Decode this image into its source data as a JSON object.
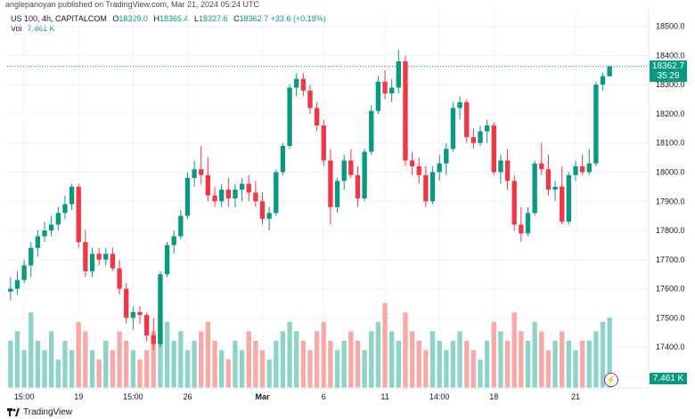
{
  "header": {
    "publish_line": "anglepanoyan published on TradingView.com, Mar 21, 2024 05:24 UTC"
  },
  "legend": {
    "symbol": "US 100, 4h, CAPITALCOM",
    "open_label": "O",
    "open": "18329.0",
    "high_label": "H",
    "high": "18365.4",
    "low_label": "L",
    "low": "18327.6",
    "close_label": "C",
    "close": "18362.7",
    "change": "+33.6 (+0.18%)",
    "vol_label": "Vol",
    "vol_value": "7.461 K"
  },
  "price_axis": {
    "ticks": [
      "18500.0",
      "18400.0",
      "18300.0",
      "18200.0",
      "18100.0",
      "18000.0",
      "17900.0",
      "17800.0",
      "17700.0",
      "17600.0",
      "17500.0",
      "17400.0",
      "17300.0"
    ],
    "last_price": "18362.7",
    "countdown": "35:29",
    "volume_tag": "7.461 K"
  },
  "time_axis": {
    "labels": [
      "15:00",
      "19",
      "15:00",
      "26",
      "Mar",
      "6",
      "11",
      "14:00",
      "18",
      "21"
    ]
  },
  "footer": {
    "brand": "TradingView"
  },
  "colors": {
    "up": "#089981",
    "down": "#f23645",
    "up_volume": "#8dd3c8",
    "down_volume": "#f7a9a7"
  },
  "chart_data": {
    "type": "candlestick",
    "ylim": [
      17260,
      18560
    ],
    "volume_max": 10,
    "candles": [
      {
        "o": 17590,
        "h": 17640,
        "l": 17560,
        "c": 17600
      },
      {
        "o": 17600,
        "h": 17660,
        "l": 17580,
        "c": 17630
      },
      {
        "o": 17630,
        "h": 17700,
        "l": 17620,
        "c": 17680
      },
      {
        "o": 17680,
        "h": 17760,
        "l": 17640,
        "c": 17740
      },
      {
        "o": 17740,
        "h": 17800,
        "l": 17710,
        "c": 17780
      },
      {
        "o": 17780,
        "h": 17830,
        "l": 17760,
        "c": 17800
      },
      {
        "o": 17800,
        "h": 17850,
        "l": 17780,
        "c": 17820
      },
      {
        "o": 17820,
        "h": 17880,
        "l": 17800,
        "c": 17860
      },
      {
        "o": 17860,
        "h": 17920,
        "l": 17840,
        "c": 17890
      },
      {
        "o": 17890,
        "h": 17960,
        "l": 17870,
        "c": 17950
      },
      {
        "o": 17950,
        "h": 17960,
        "l": 17740,
        "c": 17760
      },
      {
        "o": 17760,
        "h": 17800,
        "l": 17640,
        "c": 17660
      },
      {
        "o": 17660,
        "h": 17740,
        "l": 17640,
        "c": 17720
      },
      {
        "o": 17720,
        "h": 17740,
        "l": 17680,
        "c": 17700
      },
      {
        "o": 17700,
        "h": 17740,
        "l": 17680,
        "c": 17720
      },
      {
        "o": 17720,
        "h": 17740,
        "l": 17660,
        "c": 17670
      },
      {
        "o": 17670,
        "h": 17700,
        "l": 17580,
        "c": 17600
      },
      {
        "o": 17600,
        "h": 17620,
        "l": 17480,
        "c": 17500
      },
      {
        "o": 17500,
        "h": 17540,
        "l": 17460,
        "c": 17520
      },
      {
        "o": 17520,
        "h": 17540,
        "l": 17480,
        "c": 17510
      },
      {
        "o": 17510,
        "h": 17520,
        "l": 17420,
        "c": 17440
      },
      {
        "o": 17440,
        "h": 17500,
        "l": 17390,
        "c": 17410
      },
      {
        "o": 17410,
        "h": 17660,
        "l": 17400,
        "c": 17650
      },
      {
        "o": 17650,
        "h": 17760,
        "l": 17640,
        "c": 17750
      },
      {
        "o": 17750,
        "h": 17800,
        "l": 17720,
        "c": 17780
      },
      {
        "o": 17780,
        "h": 17870,
        "l": 17770,
        "c": 17850
      },
      {
        "o": 17850,
        "h": 18000,
        "l": 17840,
        "c": 17980
      },
      {
        "o": 17980,
        "h": 18040,
        "l": 17950,
        "c": 18010
      },
      {
        "o": 18010,
        "h": 18090,
        "l": 17960,
        "c": 17990
      },
      {
        "o": 17990,
        "h": 18050,
        "l": 17900,
        "c": 17920
      },
      {
        "o": 17920,
        "h": 17950,
        "l": 17880,
        "c": 17900
      },
      {
        "o": 17900,
        "h": 17960,
        "l": 17880,
        "c": 17940
      },
      {
        "o": 17940,
        "h": 17980,
        "l": 17880,
        "c": 17910
      },
      {
        "o": 17910,
        "h": 17960,
        "l": 17880,
        "c": 17940
      },
      {
        "o": 17940,
        "h": 17980,
        "l": 17900,
        "c": 17960
      },
      {
        "o": 17960,
        "h": 17990,
        "l": 17900,
        "c": 17930
      },
      {
        "o": 17930,
        "h": 17970,
        "l": 17880,
        "c": 17900
      },
      {
        "o": 17900,
        "h": 17930,
        "l": 17820,
        "c": 17840
      },
      {
        "o": 17840,
        "h": 17880,
        "l": 17800,
        "c": 17860
      },
      {
        "o": 17860,
        "h": 18010,
        "l": 17850,
        "c": 18000
      },
      {
        "o": 18000,
        "h": 18100,
        "l": 17990,
        "c": 18090
      },
      {
        "o": 18090,
        "h": 18300,
        "l": 18080,
        "c": 18290
      },
      {
        "o": 18290,
        "h": 18340,
        "l": 18260,
        "c": 18320
      },
      {
        "o": 18320,
        "h": 18340,
        "l": 18260,
        "c": 18280
      },
      {
        "o": 18280,
        "h": 18300,
        "l": 18200,
        "c": 18220
      },
      {
        "o": 18220,
        "h": 18240,
        "l": 18140,
        "c": 18160
      },
      {
        "o": 18160,
        "h": 18180,
        "l": 18020,
        "c": 18040
      },
      {
        "o": 18040,
        "h": 18080,
        "l": 17820,
        "c": 17880
      },
      {
        "o": 17880,
        "h": 17980,
        "l": 17860,
        "c": 17970
      },
      {
        "o": 17970,
        "h": 18060,
        "l": 17940,
        "c": 18040
      },
      {
        "o": 18040,
        "h": 18080,
        "l": 17980,
        "c": 17990
      },
      {
        "o": 17990,
        "h": 18020,
        "l": 17880,
        "c": 17910
      },
      {
        "o": 17910,
        "h": 18080,
        "l": 17900,
        "c": 18070
      },
      {
        "o": 18070,
        "h": 18230,
        "l": 18060,
        "c": 18210
      },
      {
        "o": 18210,
        "h": 18330,
        "l": 18200,
        "c": 18310
      },
      {
        "o": 18310,
        "h": 18350,
        "l": 18250,
        "c": 18270
      },
      {
        "o": 18270,
        "h": 18320,
        "l": 18240,
        "c": 18290
      },
      {
        "o": 18290,
        "h": 18420,
        "l": 18270,
        "c": 18380
      },
      {
        "o": 18380,
        "h": 18400,
        "l": 18020,
        "c": 18040
      },
      {
        "o": 18040,
        "h": 18070,
        "l": 17990,
        "c": 18020
      },
      {
        "o": 18020,
        "h": 18050,
        "l": 17960,
        "c": 17990
      },
      {
        "o": 17990,
        "h": 18020,
        "l": 17880,
        "c": 17900
      },
      {
        "o": 17900,
        "h": 18020,
        "l": 17890,
        "c": 18000
      },
      {
        "o": 18000,
        "h": 18060,
        "l": 17970,
        "c": 18030
      },
      {
        "o": 18030,
        "h": 18100,
        "l": 17990,
        "c": 18080
      },
      {
        "o": 18080,
        "h": 18240,
        "l": 18070,
        "c": 18220
      },
      {
        "o": 18220,
        "h": 18260,
        "l": 18180,
        "c": 18240
      },
      {
        "o": 18240,
        "h": 18250,
        "l": 18100,
        "c": 18120
      },
      {
        "o": 18120,
        "h": 18150,
        "l": 18080,
        "c": 18100
      },
      {
        "o": 18100,
        "h": 18160,
        "l": 18090,
        "c": 18140
      },
      {
        "o": 18140,
        "h": 18180,
        "l": 18100,
        "c": 18160
      },
      {
        "o": 18160,
        "h": 18170,
        "l": 17990,
        "c": 18000
      },
      {
        "o": 18000,
        "h": 18060,
        "l": 17960,
        "c": 18040
      },
      {
        "o": 18040,
        "h": 18080,
        "l": 17940,
        "c": 17970
      },
      {
        "o": 17970,
        "h": 17990,
        "l": 17800,
        "c": 17820
      },
      {
        "o": 17820,
        "h": 17880,
        "l": 17760,
        "c": 17790
      },
      {
        "o": 17790,
        "h": 17880,
        "l": 17780,
        "c": 17860
      },
      {
        "o": 17860,
        "h": 18040,
        "l": 17850,
        "c": 18030
      },
      {
        "o": 18030,
        "h": 18100,
        "l": 17990,
        "c": 18010
      },
      {
        "o": 18010,
        "h": 18060,
        "l": 17920,
        "c": 17940
      },
      {
        "o": 17940,
        "h": 17970,
        "l": 17900,
        "c": 17950
      },
      {
        "o": 17950,
        "h": 18020,
        "l": 17820,
        "c": 17830
      },
      {
        "o": 17830,
        "h": 18000,
        "l": 17820,
        "c": 17990
      },
      {
        "o": 17990,
        "h": 18040,
        "l": 17970,
        "c": 18020
      },
      {
        "o": 18020,
        "h": 18060,
        "l": 17990,
        "c": 18000
      },
      {
        "o": 18000,
        "h": 18080,
        "l": 17990,
        "c": 18030
      },
      {
        "o": 18030,
        "h": 18310,
        "l": 18020,
        "c": 18300
      },
      {
        "o": 18300,
        "h": 18340,
        "l": 18280,
        "c": 18329
      },
      {
        "o": 18329,
        "h": 18365.4,
        "l": 18327.6,
        "c": 18362.7
      }
    ],
    "volumes": [
      5,
      6,
      4,
      8,
      5,
      4,
      6,
      3,
      5,
      4,
      7,
      6,
      4,
      3,
      5,
      4,
      6,
      5,
      4,
      3,
      4,
      6,
      8,
      7,
      5,
      6,
      4,
      5,
      6,
      7,
      5,
      4,
      3,
      5,
      4,
      6,
      5,
      4,
      3,
      5,
      6,
      7,
      6,
      5,
      4,
      6,
      7,
      5,
      4,
      5,
      6,
      5,
      4,
      6,
      7,
      9,
      6,
      5,
      8,
      6,
      5,
      4,
      6,
      5,
      4,
      5,
      6,
      5,
      4,
      3,
      5,
      7,
      6,
      5,
      8,
      6,
      5,
      7,
      6,
      4,
      5,
      6,
      5,
      4,
      5,
      5,
      6,
      7,
      7.461
    ]
  }
}
